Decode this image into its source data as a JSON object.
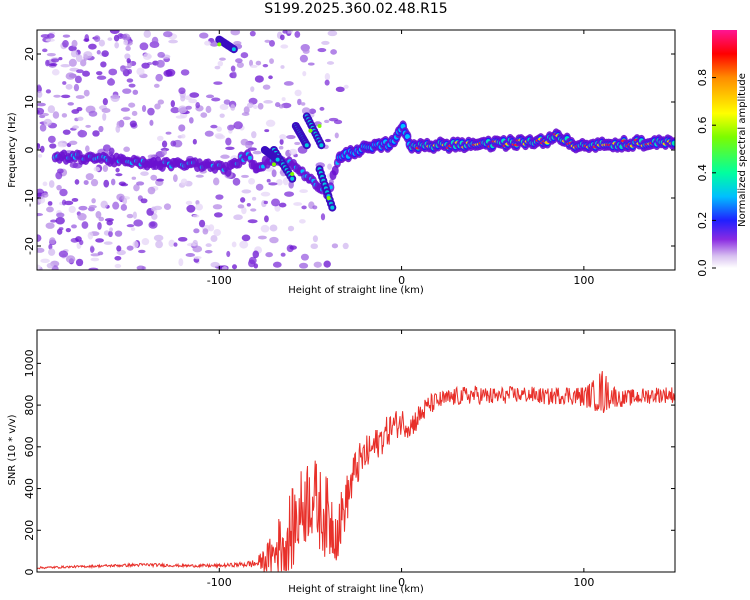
{
  "title": "S199.2025.360.02.48.R15",
  "chart_data": [
    {
      "type": "heatmap",
      "xlabel": "Height of straight line (km)",
      "ylabel": "Frequency (Hz)",
      "xlim": [
        -200,
        150
      ],
      "ylim": [
        -25,
        25
      ],
      "xticks": [
        -100,
        0,
        100
      ],
      "yticks": [
        -20,
        -10,
        0,
        10,
        20
      ],
      "colorbar": {
        "label": "Normalized spectral amplitude",
        "range": [
          0,
          1
        ],
        "ticks": [
          0.0,
          0.2,
          0.4,
          0.6,
          0.8
        ],
        "tick_labels": [
          "0.0",
          "0.2",
          "0.4",
          "0.6",
          "0.8"
        ],
        "colormap": [
          "#ffffff",
          "#8a2be2",
          "#0000ff",
          "#00bfff",
          "#00ff7f",
          "#7cfc00",
          "#ffff00",
          "#ff8c00",
          "#ff0000",
          "#ff1493"
        ]
      },
      "ridge": [
        [
          -190,
          -1.5
        ],
        [
          -170,
          -1.5
        ],
        [
          -150,
          -2.5
        ],
        [
          -130,
          -3
        ],
        [
          -110,
          -3
        ],
        [
          -95,
          -4
        ],
        [
          -85,
          -1
        ],
        [
          -80,
          -3.5
        ],
        [
          -70,
          -2
        ],
        [
          -60,
          -3
        ],
        [
          -50,
          -6
        ],
        [
          -40,
          -9
        ],
        [
          -35,
          -2
        ],
        [
          -25,
          0
        ],
        [
          -15,
          0.5
        ],
        [
          -5,
          1.5
        ],
        [
          0,
          5
        ],
        [
          5,
          1
        ],
        [
          20,
          1
        ],
        [
          40,
          1
        ],
        [
          60,
          1.5
        ],
        [
          80,
          2
        ],
        [
          85,
          3
        ],
        [
          95,
          1
        ],
        [
          110,
          1
        ],
        [
          130,
          1.5
        ],
        [
          150,
          1.5
        ]
      ],
      "bright_segments": [
        [
          -100,
          22
        ],
        [
          -45,
          5
        ],
        [
          -50,
          4
        ],
        [
          -60,
          -5
        ],
        [
          -70,
          -3
        ],
        [
          -40,
          -10
        ]
      ]
    },
    {
      "type": "line",
      "xlabel": "Height of straight line (km)",
      "ylabel": "SNR (10 * v/v)",
      "xlim": [
        -200,
        150
      ],
      "ylim": [
        0,
        1160
      ],
      "xticks": [
        -100,
        0,
        100
      ],
      "yticks": [
        0,
        200,
        400,
        600,
        800,
        1000
      ],
      "series": [
        {
          "name": "SNR",
          "color": "#e8302a",
          "x": [
            -200,
            -180,
            -160,
            -140,
            -120,
            -100,
            -90,
            -80,
            -75,
            -70,
            -65,
            -60,
            -55,
            -50,
            -45,
            -40,
            -35,
            -30,
            -25,
            -20,
            -15,
            -10,
            -5,
            0,
            5,
            10,
            15,
            20,
            30,
            40,
            50,
            60,
            70,
            80,
            90,
            100,
            105,
            110,
            115,
            120,
            130,
            140,
            150
          ],
          "values": [
            20,
            25,
            30,
            35,
            30,
            30,
            35,
            40,
            60,
            80,
            150,
            200,
            300,
            380,
            300,
            250,
            200,
            350,
            500,
            560,
            600,
            650,
            700,
            720,
            700,
            750,
            800,
            820,
            840,
            850,
            840,
            850,
            850,
            840,
            850,
            840,
            850,
            860,
            850,
            830,
            840,
            850,
            850
          ],
          "noise": [
            5,
            5,
            6,
            8,
            6,
            8,
            10,
            20,
            60,
            120,
            180,
            200,
            200,
            220,
            200,
            200,
            150,
            120,
            100,
            90,
            80,
            80,
            70,
            70,
            60,
            60,
            50,
            45,
            45,
            45,
            45,
            40,
            40,
            40,
            45,
            50,
            70,
            120,
            60,
            40,
            40,
            40,
            40
          ]
        }
      ]
    }
  ]
}
